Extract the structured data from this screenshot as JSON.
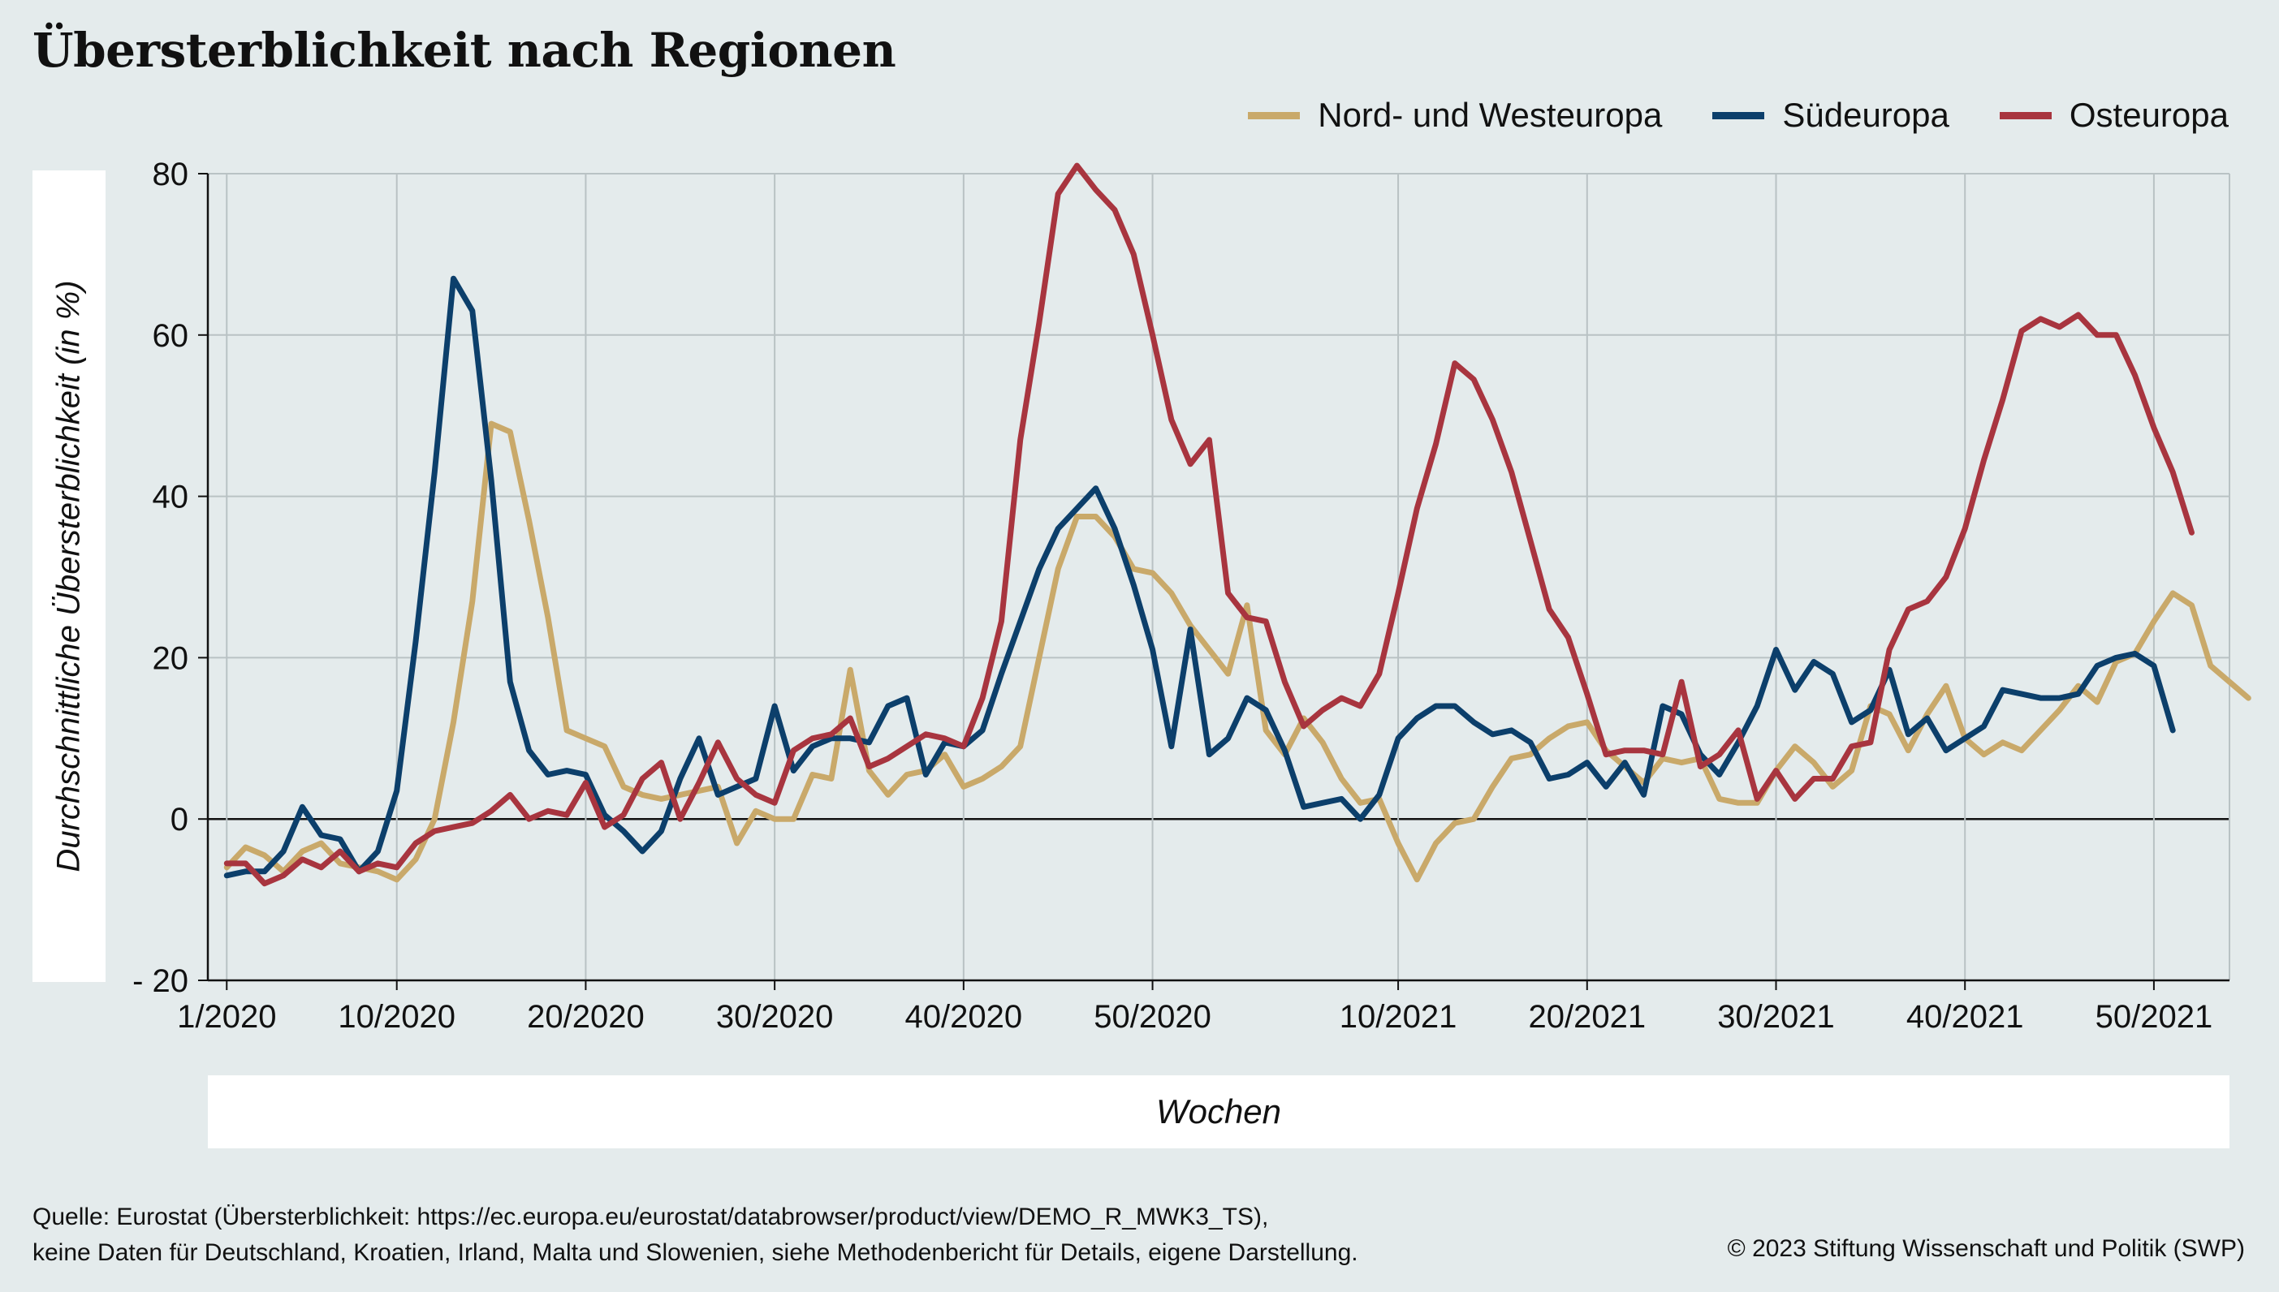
{
  "title": "Übersterblichkeit nach Regionen",
  "legend": [
    {
      "name": "Nord- und Westeuropa",
      "color": "#c9a96a"
    },
    {
      "name": "Südeuropa",
      "color": "#0c3f6b"
    },
    {
      "name": "Osteuropa",
      "color": "#a8353f"
    }
  ],
  "ylabel": "Durchschnittliche Übersterblichkeit (in %)",
  "xlabel": "Wochen",
  "source_line1": "Quelle: Eurostat (Übersterblichkeit: https://ec.europa.eu/eurostat/databrowser/product/view/DEMO_R_MWK3_TS),",
  "source_line2": "keine Daten für Deutschland, Kroatien, Irland, Malta und Slowenien, siehe Methodenbericht für Details, eigene Darstellung.",
  "copyright": "© 2023 Stiftung Wissenschaft und Politik (SWP)",
  "chart_data": {
    "type": "line",
    "x_unit": "week",
    "x_tick_labels": [
      "1/2020",
      "10/2020",
      "20/2020",
      "30/2020",
      "40/2020",
      "50/2020",
      "10/2021",
      "20/2021",
      "30/2021",
      "40/2021",
      "50/2021"
    ],
    "x_tick_positions": [
      1,
      10,
      20,
      30,
      40,
      50,
      63,
      73,
      83,
      93,
      103
    ],
    "xlim": [
      0,
      107
    ],
    "y_ticks": [
      -20,
      0,
      20,
      40,
      60,
      80
    ],
    "y_tick_labels": [
      "- 20",
      "0",
      "20",
      "40",
      "60",
      "80"
    ],
    "ylim": [
      -20,
      80
    ],
    "grid": true,
    "legend_position": "top-right",
    "series": [
      {
        "name": "Nord- und Westeuropa",
        "color": "#c9a96a",
        "values": [
          -6,
          -3.5,
          -4.5,
          -6.5,
          -4,
          -3,
          -5.5,
          -6,
          -6.5,
          -7.5,
          -5,
          0,
          12,
          27,
          49,
          48,
          37,
          25,
          11,
          10,
          9,
          4,
          3,
          2.5,
          3,
          3.5,
          4,
          -3,
          1,
          0,
          0,
          5.5,
          5,
          18.5,
          6,
          3,
          5.5,
          6,
          8,
          4,
          5,
          6.5,
          9,
          20,
          31,
          37.5,
          37.5,
          35,
          31,
          30.5,
          28,
          24,
          21,
          18,
          26.5,
          11,
          8,
          12.5,
          9.5,
          5,
          2,
          2.5,
          -3,
          -7.5,
          -3,
          -0.5,
          0,
          4,
          7.5,
          8,
          10,
          11.5,
          12,
          8.5,
          6.5,
          4.5,
          7.5,
          7,
          7.5,
          2.5,
          2,
          2,
          6,
          9,
          7,
          4,
          6,
          14,
          13,
          8.5,
          13,
          16.5,
          10,
          8,
          9.5,
          8.5,
          11,
          13.5,
          16.5,
          14.5,
          19.5,
          20.5,
          24.5,
          28,
          26.5,
          19,
          17,
          15
        ]
      },
      {
        "name": "Südeuropa",
        "color": "#0c3f6b",
        "values": [
          -7,
          -6.5,
          -6.5,
          -4,
          1.5,
          -2,
          -2.5,
          -6.5,
          -4,
          3.5,
          22,
          43,
          67,
          63,
          42,
          17,
          8.5,
          5.5,
          6,
          5.5,
          0.5,
          -1.5,
          -4,
          -1.5,
          5,
          10,
          3,
          4,
          5,
          14,
          6,
          9,
          10,
          10,
          9.5,
          14,
          15,
          5.5,
          9.5,
          9,
          11,
          18,
          24.5,
          31,
          36,
          38.5,
          41,
          36,
          29,
          21,
          9,
          23.5,
          8,
          10,
          15,
          13.5,
          8.5,
          1.5,
          2,
          2.5,
          0,
          3,
          10,
          12.5,
          14,
          14,
          12,
          10.5,
          11,
          9.5,
          5,
          5.5,
          7,
          4,
          7,
          3,
          14,
          13,
          8,
          5.5,
          9.5,
          14,
          21,
          16,
          19.5,
          18,
          12,
          13.5,
          18.5,
          10.5,
          12.5,
          8.5,
          10,
          11.5,
          16,
          15.5,
          15,
          15,
          15.5,
          19,
          20,
          20.5,
          19,
          11
        ]
      },
      {
        "name": "Osteuropa",
        "color": "#a8353f",
        "values": [
          -5.5,
          -5.5,
          -8,
          -7,
          -5,
          -6,
          -4,
          -6.5,
          -5.5,
          -6,
          -3,
          -1.5,
          -1,
          -0.5,
          1,
          3,
          0,
          1,
          0.5,
          4.5,
          -1,
          0.5,
          5,
          7,
          0,
          4.5,
          9.5,
          5,
          3,
          2,
          8.5,
          10,
          10.5,
          12.5,
          6.5,
          7.5,
          9,
          10.5,
          10,
          9,
          15,
          24.5,
          47,
          61.5,
          77.5,
          81,
          78,
          75.5,
          70,
          60,
          49.5,
          44,
          47,
          28,
          25,
          24.5,
          17,
          11.5,
          13.5,
          15,
          14,
          18,
          28,
          38.5,
          46.5,
          56.5,
          54.5,
          49.5,
          43,
          34.5,
          26,
          22.5,
          15.5,
          8,
          8.5,
          8.5,
          8,
          17,
          6.5,
          8,
          11,
          2.5,
          6,
          2.5,
          5,
          5,
          9,
          9.5,
          21,
          26,
          27,
          30,
          36,
          44.5,
          52,
          60.5,
          62,
          61,
          62.5,
          60,
          60,
          55,
          48.5,
          43,
          35.5
        ]
      }
    ]
  }
}
